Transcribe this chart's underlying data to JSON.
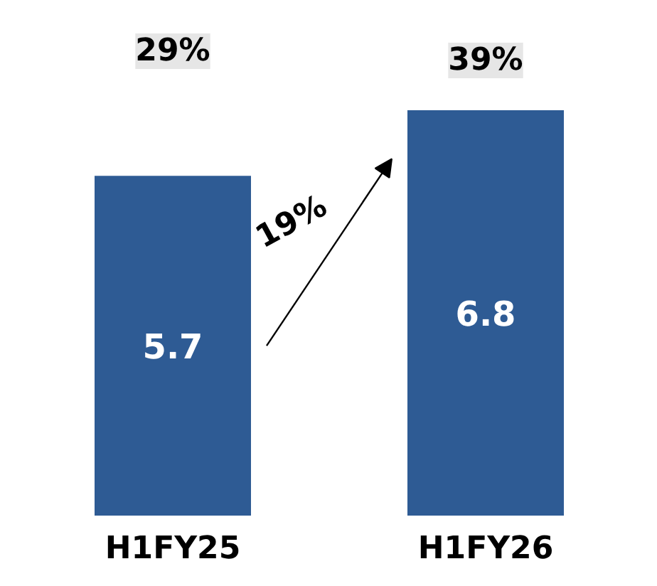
{
  "chart_data": {
    "type": "bar",
    "categories": [
      "H1FY25",
      "H1FY26"
    ],
    "values": [
      5.7,
      6.8
    ],
    "color": "#2e5b94",
    "data_labels": true,
    "grid": false,
    "annotations": [
      "29%",
      "39%",
      "19%"
    ]
  }
}
